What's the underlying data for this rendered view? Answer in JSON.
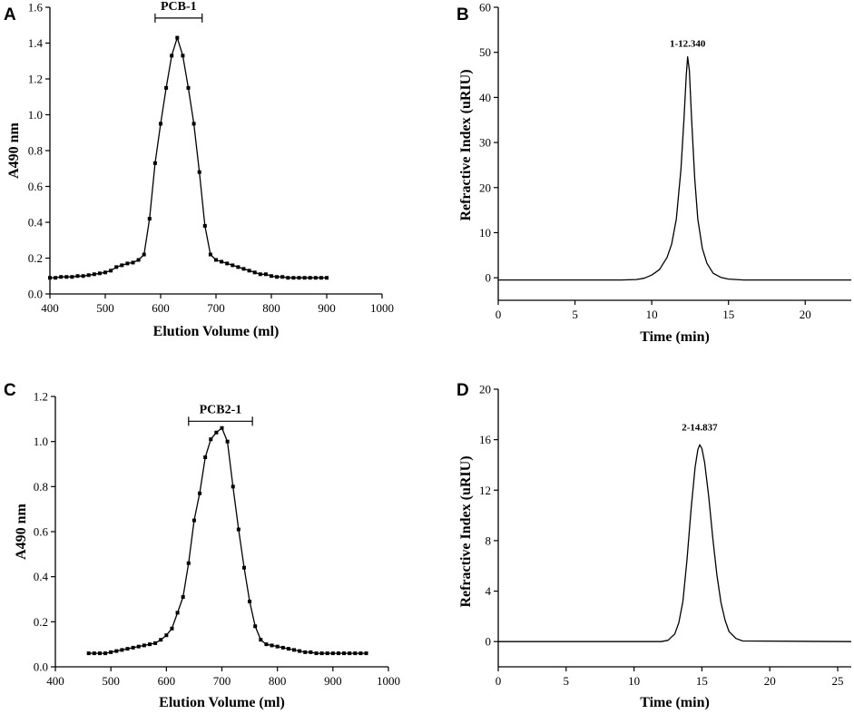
{
  "figure": {
    "panels": [
      "A",
      "B",
      "C",
      "D"
    ]
  },
  "chart_data": [
    {
      "panel": "A",
      "type": "line",
      "marker": "square",
      "xlabel": "Elution Volume (ml)",
      "ylabel": "A490 nm",
      "xlim": [
        400,
        1000
      ],
      "ylim": [
        0,
        1.6
      ],
      "xticks": [
        400,
        500,
        600,
        700,
        800,
        900,
        1000
      ],
      "yticks": [
        0.0,
        0.2,
        0.4,
        0.6,
        0.8,
        1.0,
        1.2,
        1.4,
        1.6
      ],
      "ytick_labels": [
        "0.0",
        "0.2",
        "0.4",
        "0.6",
        "0.8",
        "1.0",
        "1.2",
        "1.4",
        "1.6"
      ],
      "bracket": {
        "label": "PCB-1",
        "x_start": 590,
        "x_end": 675,
        "y": 1.54
      },
      "x": [
        400,
        410,
        420,
        430,
        440,
        450,
        460,
        470,
        480,
        490,
        500,
        510,
        520,
        530,
        540,
        550,
        560,
        570,
        580,
        590,
        600,
        610,
        620,
        630,
        640,
        650,
        660,
        670,
        680,
        690,
        700,
        710,
        720,
        730,
        740,
        750,
        760,
        770,
        780,
        790,
        800,
        810,
        820,
        830,
        840,
        850,
        860,
        870,
        880,
        890,
        900
      ],
      "y": [
        0.09,
        0.09,
        0.095,
        0.095,
        0.095,
        0.1,
        0.1,
        0.105,
        0.11,
        0.115,
        0.12,
        0.13,
        0.15,
        0.16,
        0.17,
        0.175,
        0.19,
        0.22,
        0.42,
        0.73,
        0.95,
        1.15,
        1.33,
        1.43,
        1.33,
        1.15,
        0.95,
        0.68,
        0.38,
        0.22,
        0.19,
        0.18,
        0.17,
        0.16,
        0.15,
        0.14,
        0.13,
        0.12,
        0.11,
        0.11,
        0.1,
        0.095,
        0.095,
        0.09,
        0.09,
        0.09,
        0.09,
        0.09,
        0.09,
        0.09,
        0.09
      ]
    },
    {
      "panel": "B",
      "type": "line",
      "marker": "none",
      "xlabel": "Time (min)",
      "ylabel": "Refractive Index (uRIU)",
      "xlim": [
        0,
        23
      ],
      "ylim": [
        -5,
        60
      ],
      "xticks": [
        0,
        5,
        10,
        15,
        20
      ],
      "yticks": [
        0,
        10,
        20,
        30,
        40,
        50,
        60
      ],
      "ytick_labels": [
        "0",
        "10",
        "20",
        "30",
        "40",
        "50",
        "60"
      ],
      "peak_label": {
        "text": "1-12.340",
        "x": 12.34,
        "y": 50
      },
      "x": [
        0,
        8,
        9,
        9.5,
        10,
        10.5,
        11,
        11.3,
        11.6,
        11.9,
        12.1,
        12.25,
        12.34,
        12.45,
        12.6,
        12.8,
        13.0,
        13.3,
        13.6,
        14.0,
        14.5,
        15.0,
        16.0,
        23
      ],
      "y": [
        -0.5,
        -0.5,
        -0.4,
        -0.1,
        0.6,
        1.8,
        4.5,
        7.5,
        13,
        24,
        35,
        45,
        49,
        46,
        35,
        22,
        13,
        6.5,
        3.2,
        1.0,
        0.1,
        -0.3,
        -0.5,
        -0.5
      ]
    },
    {
      "panel": "C",
      "type": "line",
      "marker": "square",
      "xlabel": "Elution Volume (ml)",
      "ylabel": "A490 nm",
      "xlim": [
        400,
        1000
      ],
      "ylim": [
        0,
        1.2
      ],
      "xticks": [
        400,
        500,
        600,
        700,
        800,
        900,
        1000
      ],
      "yticks": [
        0.0,
        0.2,
        0.4,
        0.6,
        0.8,
        1.0,
        1.2
      ],
      "ytick_labels": [
        "0.0",
        "0.2",
        "0.4",
        "0.6",
        "0.8",
        "1.0",
        "1.2"
      ],
      "bracket": {
        "label": "PCB2-1",
        "x_start": 640,
        "x_end": 755,
        "y": 1.09
      },
      "x": [
        460,
        470,
        480,
        490,
        500,
        510,
        520,
        530,
        540,
        550,
        560,
        570,
        580,
        590,
        600,
        610,
        620,
        630,
        640,
        650,
        660,
        670,
        680,
        690,
        700,
        710,
        720,
        730,
        740,
        750,
        760,
        770,
        780,
        790,
        800,
        810,
        820,
        830,
        840,
        850,
        860,
        870,
        880,
        890,
        900,
        910,
        920,
        930,
        940,
        950,
        960
      ],
      "y": [
        0.06,
        0.06,
        0.06,
        0.06,
        0.065,
        0.07,
        0.075,
        0.08,
        0.085,
        0.09,
        0.095,
        0.1,
        0.105,
        0.12,
        0.14,
        0.17,
        0.24,
        0.31,
        0.46,
        0.65,
        0.77,
        0.93,
        1.01,
        1.04,
        1.06,
        1.0,
        0.8,
        0.61,
        0.44,
        0.29,
        0.18,
        0.12,
        0.1,
        0.095,
        0.09,
        0.085,
        0.08,
        0.075,
        0.07,
        0.065,
        0.065,
        0.06,
        0.06,
        0.06,
        0.06,
        0.06,
        0.06,
        0.06,
        0.06,
        0.06,
        0.06
      ]
    },
    {
      "panel": "D",
      "type": "line",
      "marker": "none",
      "xlabel": "Time (min)",
      "ylabel": "Refractive Index (uRIU)",
      "xlim": [
        0,
        26
      ],
      "ylim": [
        -2,
        20
      ],
      "xticks": [
        0,
        5,
        10,
        15,
        20,
        25
      ],
      "yticks": [
        0,
        4,
        8,
        12,
        16,
        20
      ],
      "ytick_labels": [
        "0",
        "4",
        "8",
        "12",
        "16",
        "20"
      ],
      "peak_label": {
        "text": "2-14.837",
        "x": 14.837,
        "y": 16.3
      },
      "x": [
        0,
        12,
        12.5,
        13.0,
        13.3,
        13.6,
        13.9,
        14.2,
        14.5,
        14.7,
        14.837,
        15.0,
        15.2,
        15.5,
        15.8,
        16.1,
        16.4,
        16.7,
        17.0,
        17.5,
        18.0,
        26
      ],
      "y": [
        0,
        0,
        0.1,
        0.6,
        1.5,
        3.2,
        6.5,
        10.5,
        13.8,
        15.2,
        15.6,
        15.3,
        14.2,
        11.5,
        8.2,
        5.3,
        3.1,
        1.7,
        0.8,
        0.25,
        0.05,
        0
      ]
    }
  ]
}
